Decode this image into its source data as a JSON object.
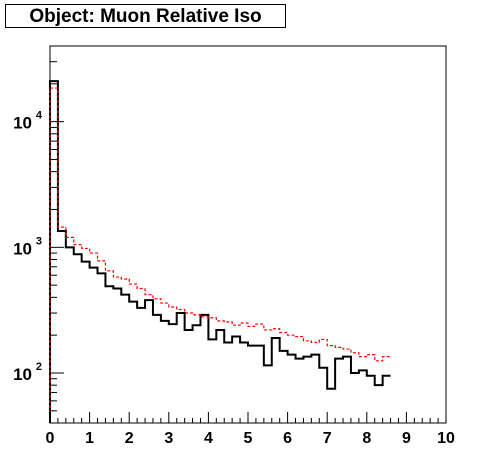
{
  "chart_data": {
    "type": "histogram",
    "title": "Object: Muon Relative Iso",
    "xlabel": "",
    "ylabel": "",
    "xlim": [
      0,
      10
    ],
    "ylim": [
      40,
      40000
    ],
    "yscale": "log",
    "grid": false,
    "legend": "none",
    "bin_width": 0.2,
    "x_ticks": [
      "0",
      "1",
      "2",
      "3",
      "4",
      "5",
      "6",
      "7",
      "8",
      "9",
      "10"
    ],
    "y_ticks": [
      {
        "value": 100,
        "base": "10",
        "exp": "2"
      },
      {
        "value": 1000,
        "base": "10",
        "exp": "3"
      },
      {
        "value": 10000,
        "base": "10",
        "exp": "4"
      }
    ],
    "series": [
      {
        "style": "solid",
        "color": "#000000",
        "values": [
          21000,
          1350,
          1000,
          880,
          770,
          690,
          620,
          490,
          470,
          420,
          370,
          330,
          380,
          290,
          260,
          245,
          300,
          220,
          240,
          290,
          185,
          220,
          175,
          195,
          175,
          165,
          165,
          115,
          190,
          150,
          140,
          130,
          135,
          140,
          110,
          75,
          130,
          135,
          100,
          105,
          95,
          80,
          95
        ]
      },
      {
        "style": "dashed",
        "color": "#ff0000",
        "values": [
          18500,
          1450,
          1200,
          1050,
          980,
          900,
          780,
          650,
          580,
          560,
          510,
          470,
          420,
          390,
          360,
          335,
          320,
          300,
          290,
          280,
          275,
          260,
          255,
          240,
          250,
          235,
          245,
          220,
          225,
          210,
          200,
          195,
          180,
          175,
          185,
          165,
          160,
          155,
          145,
          135,
          140,
          125,
          135
        ]
      }
    ]
  }
}
